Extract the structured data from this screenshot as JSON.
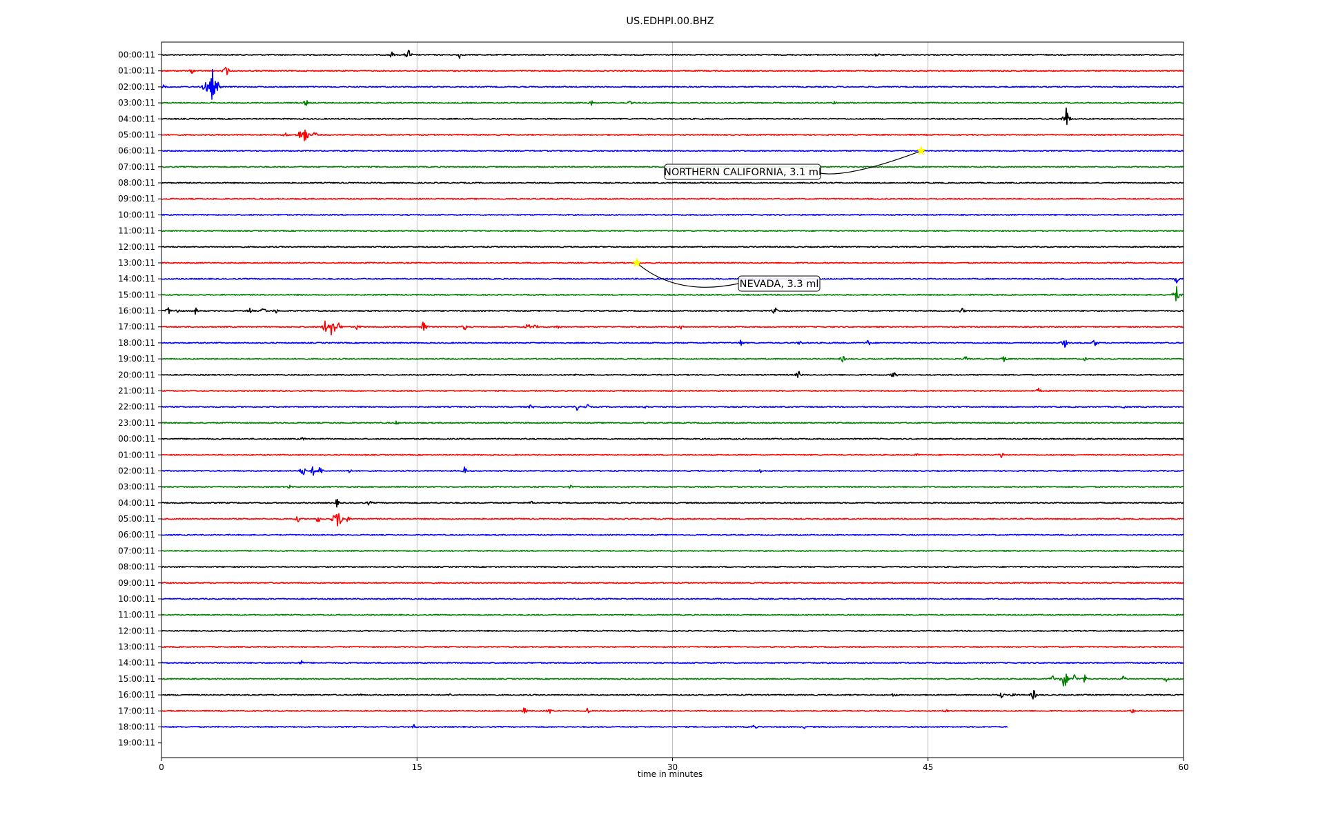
{
  "chart_data": {
    "type": "line",
    "title": "US.EDHPI.00.BHZ",
    "xlabel": "time in minutes",
    "xlim": [
      0,
      60
    ],
    "x_ticks": [
      0,
      15,
      30,
      45,
      60
    ],
    "x_tick_labels": [
      "0",
      "15",
      "30",
      "45",
      "60"
    ],
    "grid": "vertical",
    "trace_colors": [
      "#000000",
      "#ff0000",
      "#0000ff",
      "#008000"
    ],
    "rows": [
      {
        "label": "00:00:11",
        "end_minute": 60,
        "events": [
          [
            13.5,
            0.5
          ],
          [
            14.5,
            0.9
          ],
          [
            17.5,
            0.5
          ],
          [
            42,
            0.4
          ]
        ]
      },
      {
        "label": "01:00:11",
        "end_minute": 60,
        "events": [
          [
            1.8,
            0.4
          ],
          [
            3.8,
            0.8
          ]
        ]
      },
      {
        "label": "02:00:11",
        "end_minute": 60,
        "events": [
          [
            0.2,
            0.5
          ],
          [
            2.6,
            1.2
          ],
          [
            3.0,
            2.6
          ],
          [
            3.3,
            0.8
          ]
        ]
      },
      {
        "label": "03:00:11",
        "end_minute": 60,
        "events": [
          [
            8.5,
            0.5
          ],
          [
            25.2,
            0.5
          ],
          [
            27.5,
            0.3
          ],
          [
            39.5,
            0.3
          ]
        ]
      },
      {
        "label": "04:00:11",
        "end_minute": 60,
        "events": [
          [
            53.1,
            1.8
          ]
        ]
      },
      {
        "label": "05:00:11",
        "end_minute": 60,
        "events": [
          [
            7.3,
            0.4
          ],
          [
            8.1,
            0.7
          ],
          [
            8.4,
            1.7
          ],
          [
            9.0,
            0.5
          ]
        ]
      },
      {
        "label": "06:00:11",
        "end_minute": 60,
        "events": []
      },
      {
        "label": "07:00:11",
        "end_minute": 60,
        "events": []
      },
      {
        "label": "08:00:11",
        "end_minute": 60,
        "events": []
      },
      {
        "label": "09:00:11",
        "end_minute": 60,
        "events": []
      },
      {
        "label": "10:00:11",
        "end_minute": 60,
        "events": []
      },
      {
        "label": "11:00:11",
        "end_minute": 60,
        "events": []
      },
      {
        "label": "12:00:11",
        "end_minute": 60,
        "events": []
      },
      {
        "label": "13:00:11",
        "end_minute": 60,
        "events": []
      },
      {
        "label": "14:00:11",
        "end_minute": 60,
        "events": [
          [
            59.6,
            0.6
          ]
        ]
      },
      {
        "label": "15:00:11",
        "end_minute": 60,
        "events": [
          [
            59.6,
            1.3
          ]
        ]
      },
      {
        "label": "16:00:11",
        "end_minute": 60,
        "events": [
          [
            0.4,
            0.6
          ],
          [
            1.0,
            0.5
          ],
          [
            2.0,
            0.5
          ],
          [
            5.2,
            0.5
          ],
          [
            6.0,
            0.6
          ],
          [
            6.7,
            0.4
          ],
          [
            36.0,
            0.6
          ],
          [
            47.0,
            0.5
          ]
        ]
      },
      {
        "label": "17:00:11",
        "end_minute": 60,
        "events": [
          [
            9.6,
            0.9
          ],
          [
            9.9,
            0.9
          ],
          [
            10.0,
            2.2
          ],
          [
            10.4,
            0.7
          ],
          [
            11.5,
            0.5
          ],
          [
            15.4,
            1.2
          ],
          [
            17.8,
            0.5
          ],
          [
            21.5,
            0.6
          ],
          [
            22.0,
            0.5
          ],
          [
            23.3,
            0.4
          ],
          [
            30.5,
            0.3
          ]
        ]
      },
      {
        "label": "18:00:11",
        "end_minute": 60,
        "events": [
          [
            34.0,
            0.5
          ],
          [
            37.5,
            0.4
          ],
          [
            41.5,
            0.5
          ],
          [
            53.0,
            0.8
          ],
          [
            54.8,
            0.7
          ]
        ]
      },
      {
        "label": "19:00:11",
        "end_minute": 60,
        "events": [
          [
            40.0,
            0.5
          ],
          [
            47.2,
            0.4
          ],
          [
            49.5,
            0.5
          ],
          [
            54.2,
            0.3
          ]
        ]
      },
      {
        "label": "20:00:11",
        "end_minute": 60,
        "events": [
          [
            24.3,
            0.3
          ],
          [
            37.4,
            0.6
          ],
          [
            43.0,
            0.6
          ]
        ]
      },
      {
        "label": "21:00:11",
        "end_minute": 60,
        "events": [
          [
            51.5,
            0.4
          ]
        ]
      },
      {
        "label": "22:00:11",
        "end_minute": 60,
        "events": [
          [
            21.7,
            0.4
          ],
          [
            24.4,
            0.5
          ],
          [
            25.0,
            0.4
          ],
          [
            28.4,
            0.4
          ],
          [
            56.5,
            0.3
          ]
        ]
      },
      {
        "label": "23:00:11",
        "end_minute": 60,
        "events": [
          [
            13.8,
            0.3
          ]
        ]
      },
      {
        "label": "00:00:11",
        "end_minute": 60,
        "events": [
          [
            8.3,
            0.3
          ]
        ]
      },
      {
        "label": "01:00:11",
        "end_minute": 60,
        "events": [
          [
            49.3,
            0.5
          ],
          [
            44.3,
            0.3
          ]
        ]
      },
      {
        "label": "02:00:11",
        "end_minute": 60,
        "events": [
          [
            8.3,
            0.8
          ],
          [
            8.9,
            0.7
          ],
          [
            9.3,
            0.7
          ],
          [
            11.0,
            0.4
          ],
          [
            17.8,
            0.6
          ],
          [
            35.2,
            0.4
          ]
        ]
      },
      {
        "label": "03:00:11",
        "end_minute": 60,
        "events": [
          [
            7.5,
            0.3
          ],
          [
            24.0,
            0.3
          ]
        ]
      },
      {
        "label": "04:00:11",
        "end_minute": 60,
        "events": [
          [
            10.3,
            0.6
          ],
          [
            12.2,
            0.4
          ],
          [
            21.7,
            0.3
          ]
        ]
      },
      {
        "label": "05:00:11",
        "end_minute": 60,
        "events": [
          [
            8.0,
            0.5
          ],
          [
            9.2,
            0.6
          ],
          [
            10.1,
            0.6
          ],
          [
            10.4,
            1.8
          ],
          [
            10.9,
            0.5
          ]
        ]
      },
      {
        "label": "06:00:11",
        "end_minute": 60,
        "events": []
      },
      {
        "label": "07:00:11",
        "end_minute": 60,
        "events": []
      },
      {
        "label": "08:00:11",
        "end_minute": 60,
        "events": []
      },
      {
        "label": "09:00:11",
        "end_minute": 60,
        "events": []
      },
      {
        "label": "10:00:11",
        "end_minute": 60,
        "events": []
      },
      {
        "label": "11:00:11",
        "end_minute": 60,
        "events": []
      },
      {
        "label": "12:00:11",
        "end_minute": 60,
        "events": []
      },
      {
        "label": "13:00:11",
        "end_minute": 60,
        "events": []
      },
      {
        "label": "14:00:11",
        "end_minute": 60,
        "events": [
          [
            8.2,
            0.4
          ]
        ]
      },
      {
        "label": "15:00:11",
        "end_minute": 60,
        "events": [
          [
            52.3,
            0.6
          ],
          [
            53.0,
            1.7
          ],
          [
            53.6,
            0.8
          ],
          [
            54.2,
            0.6
          ],
          [
            56.5,
            0.5
          ],
          [
            59.0,
            0.5
          ]
        ]
      },
      {
        "label": "16:00:11",
        "end_minute": 60,
        "events": [
          [
            43.0,
            0.4
          ],
          [
            49.3,
            0.5
          ],
          [
            50.0,
            0.5
          ],
          [
            51.2,
            0.8
          ],
          [
            11.6,
            0.3
          ],
          [
            17.0,
            0.3
          ]
        ]
      },
      {
        "label": "17:00:11",
        "end_minute": 60,
        "events": [
          [
            21.3,
            0.5
          ],
          [
            22.8,
            0.5
          ],
          [
            25.0,
            0.5
          ],
          [
            46.0,
            0.4
          ],
          [
            57.0,
            0.4
          ]
        ]
      },
      {
        "label": "18:00:11",
        "end_minute": 49.7,
        "events": [
          [
            14.8,
            0.4
          ],
          [
            34.8,
            0.4
          ],
          [
            37.8,
            0.3
          ]
        ]
      },
      {
        "label": "19:00:11",
        "end_minute": 0,
        "events": []
      }
    ],
    "annotations": [
      {
        "text": "NORTHERN CALIFORNIA, 3.1 ml",
        "row": 6,
        "minute": 44.6,
        "marker": "star",
        "marker_color": "#ffff00"
      },
      {
        "text": "NEVADA, 3.3 ml",
        "row": 13,
        "minute": 27.9,
        "marker": "star",
        "marker_color": "#ffff00"
      }
    ]
  }
}
